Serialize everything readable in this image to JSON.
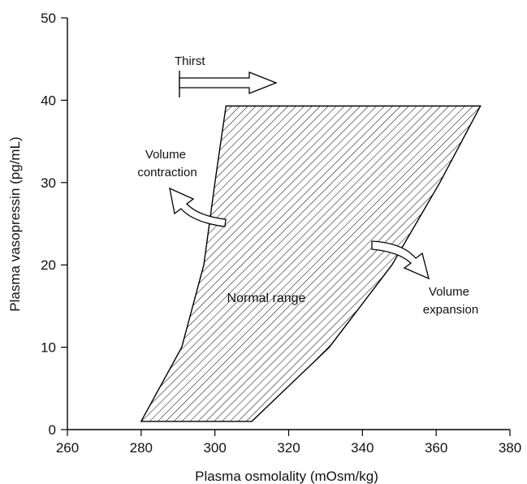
{
  "chart_data": {
    "type": "area",
    "xlabel": "Plasma osmolality (mOsm/kg)",
    "ylabel": "Plasma vasopressin (pg/mL)",
    "xlim": [
      260,
      380
    ],
    "ylim": [
      0,
      50
    ],
    "xticks": [
      260,
      280,
      300,
      320,
      340,
      360,
      380
    ],
    "yticks": [
      0,
      10,
      20,
      30,
      40,
      50
    ],
    "grid": false,
    "region": {
      "label": "Normal range",
      "pattern": "diagonal-hatch",
      "left_boundary": [
        [
          280,
          1
        ],
        [
          291,
          10
        ],
        [
          297,
          20
        ],
        [
          300,
          30
        ],
        [
          303,
          39.3
        ]
      ],
      "right_boundary": [
        [
          310,
          1
        ],
        [
          331,
          10
        ],
        [
          348,
          20
        ],
        [
          361,
          30
        ],
        [
          372,
          39.3
        ]
      ]
    },
    "annotations": [
      {
        "text": "Thirst",
        "arrow": "threshold-arrow",
        "x": 290,
        "y": 43.3
      },
      {
        "text": "Volume\ncontraction",
        "lines": [
          "Volume",
          "contraction"
        ],
        "arrow": "curved-up-left"
      },
      {
        "text": "Volume\nexpansion",
        "lines": [
          "Volume",
          "expansion"
        ],
        "arrow": "curved-down-right"
      }
    ]
  }
}
